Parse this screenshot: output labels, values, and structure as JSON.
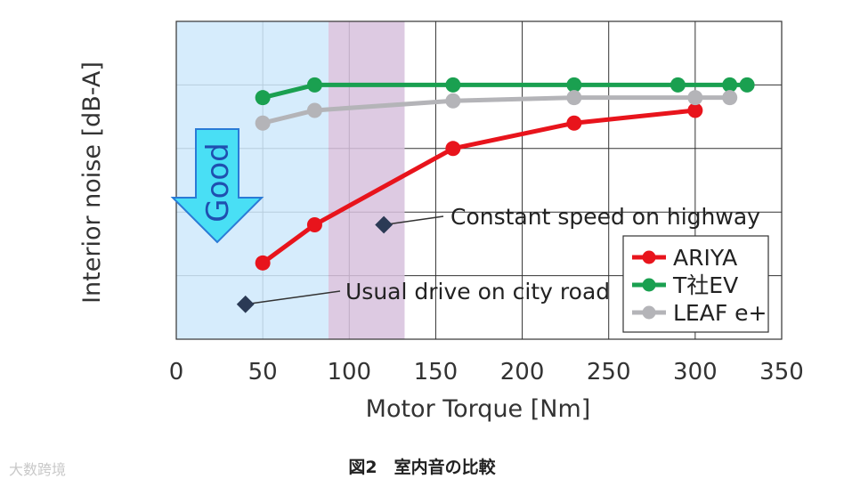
{
  "chart_data": {
    "type": "line",
    "xlabel": "Motor Torque [Nm]",
    "ylabel": "Interior noise [dB-A]",
    "xlim": [
      0,
      350
    ],
    "ylim": [
      0,
      5
    ],
    "xticks": [
      "0",
      "50",
      "100",
      "150",
      "200",
      "250",
      "300",
      "350"
    ],
    "x_tick_values": [
      0,
      50,
      100,
      150,
      200,
      250,
      300,
      350
    ],
    "grid": true,
    "legend_position": "bottom-right",
    "series": [
      {
        "name": "ARIYA",
        "color": "#e8141c",
        "x": [
          50,
          80,
          160,
          230,
          300
        ],
        "y": [
          1.2,
          1.8,
          3.0,
          3.4,
          3.6
        ]
      },
      {
        "name": "T社EV",
        "color": "#1aa050",
        "x": [
          50,
          80,
          160,
          230,
          290,
          320,
          330
        ],
        "y": [
          3.8,
          4.0,
          4.0,
          4.0,
          4.0,
          4.0,
          4.0
        ]
      },
      {
        "name": "LEAF e+",
        "color": "#b4b4b8",
        "x": [
          50,
          80,
          160,
          230,
          300,
          320
        ],
        "y": [
          3.4,
          3.6,
          3.75,
          3.8,
          3.8,
          3.8
        ]
      }
    ],
    "regions": [
      {
        "name": "city-road-region",
        "x_start": 0,
        "x_end": 88,
        "color": "#cfe9fb"
      },
      {
        "name": "highway-region",
        "x_start": 88,
        "x_end": 132,
        "color": "#d7c1dd"
      }
    ],
    "annotations": [
      {
        "name": "highway-annotation",
        "text": "Constant speed on highway",
        "x": 120,
        "y": 1.8
      },
      {
        "name": "city-road-annotation",
        "text": "Usual drive on city road",
        "x": 40,
        "y": 0.55
      }
    ],
    "good_arrow": {
      "text": "Good",
      "fill": "#49dff5",
      "stroke": "#2a7bd6"
    }
  },
  "caption": "図2　室内音の比較",
  "watermark": "大数跨境"
}
